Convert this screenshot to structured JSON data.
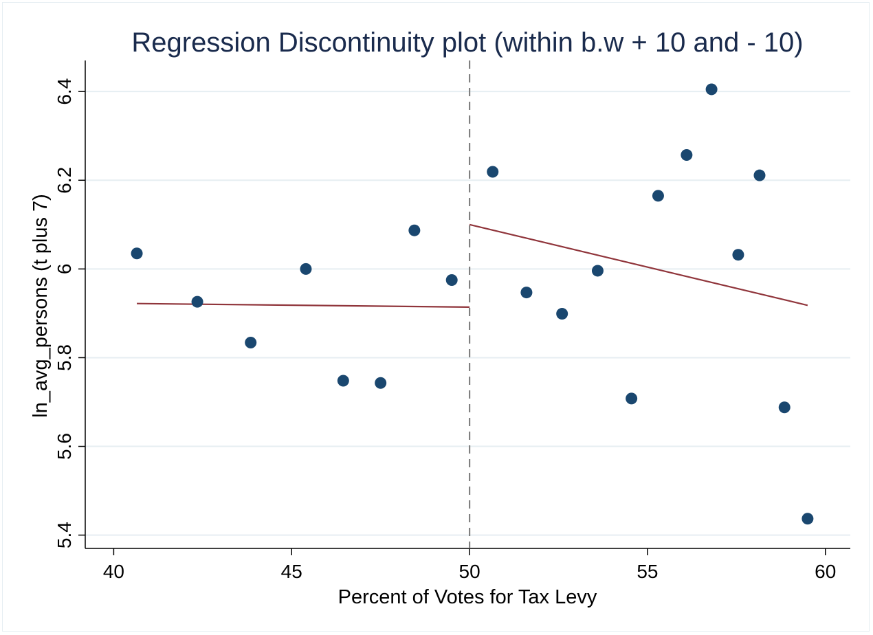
{
  "chart_data": {
    "type": "scatter",
    "title": "Regression Discontinuity plot (within b.w + 10 and - 10)",
    "xlabel": "Percent of Votes for Tax Levy",
    "ylabel": "ln_avg_persons (t plus 7)",
    "xlim": [
      39.2,
      60.7
    ],
    "ylim": [
      5.37,
      6.47
    ],
    "x_ticks": [
      "40",
      "45",
      "50",
      "55",
      "60"
    ],
    "y_ticks": [
      "5.4",
      "5.6",
      "5.8",
      "6",
      "6.2",
      "6.4"
    ],
    "x_tick_values": [
      40,
      45,
      50,
      55,
      60
    ],
    "y_tick_values": [
      5.4,
      5.6,
      5.8,
      6.0,
      6.2,
      6.4
    ],
    "grid": "horizontal",
    "cutoff": 50,
    "points": [
      {
        "x": 40.65,
        "y": 6.035
      },
      {
        "x": 42.35,
        "y": 5.926
      },
      {
        "x": 43.85,
        "y": 5.834
      },
      {
        "x": 45.4,
        "y": 6.0
      },
      {
        "x": 46.45,
        "y": 5.748
      },
      {
        "x": 47.5,
        "y": 5.743
      },
      {
        "x": 48.45,
        "y": 6.087
      },
      {
        "x": 49.5,
        "y": 5.975
      },
      {
        "x": 50.65,
        "y": 6.219
      },
      {
        "x": 51.6,
        "y": 5.947
      },
      {
        "x": 52.6,
        "y": 5.899
      },
      {
        "x": 53.6,
        "y": 5.996
      },
      {
        "x": 54.55,
        "y": 5.708
      },
      {
        "x": 55.3,
        "y": 6.165
      },
      {
        "x": 56.1,
        "y": 6.257
      },
      {
        "x": 56.8,
        "y": 6.405
      },
      {
        "x": 57.55,
        "y": 6.032
      },
      {
        "x": 58.15,
        "y": 6.211
      },
      {
        "x": 58.85,
        "y": 5.688
      },
      {
        "x": 59.5,
        "y": 5.437
      }
    ],
    "fit_lines": [
      {
        "x": [
          40.65,
          50.0
        ],
        "y": [
          5.922,
          5.914
        ]
      },
      {
        "x": [
          50.0,
          59.5
        ],
        "y": [
          6.1,
          5.918
        ]
      }
    ],
    "colors": {
      "marker": "#1a476f",
      "fit": "#90353b",
      "cutoff": "#808080",
      "grid": "#e6eef2",
      "title": "#1a2b4d"
    }
  }
}
